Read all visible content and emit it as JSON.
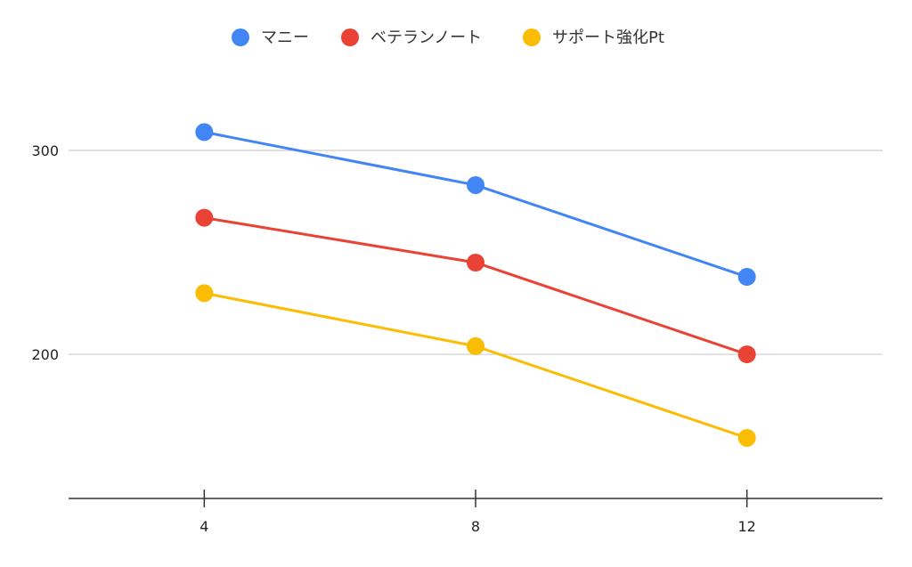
{
  "chart_data": {
    "type": "line",
    "title": "",
    "xlabel": "",
    "ylabel": "",
    "x": [
      4,
      8,
      12
    ],
    "xlim": [
      2,
      14
    ],
    "ylim": [
      129.3,
      340
    ],
    "x_ticks": [
      "4",
      "8",
      "12"
    ],
    "y_ticks": [
      "200",
      "300"
    ],
    "y_tick_values": [
      200,
      300
    ],
    "grid": true,
    "legend_position": "top",
    "series": [
      {
        "name": "マニー",
        "color": "#4285f4",
        "values": [
          309,
          283,
          238
        ]
      },
      {
        "name": "ベテランノート",
        "color": "#ea4335",
        "values": [
          267,
          245,
          200
        ]
      },
      {
        "name": "サポート強化Pt",
        "color": "#fbbc04",
        "values": [
          230,
          204,
          159
        ]
      }
    ]
  }
}
